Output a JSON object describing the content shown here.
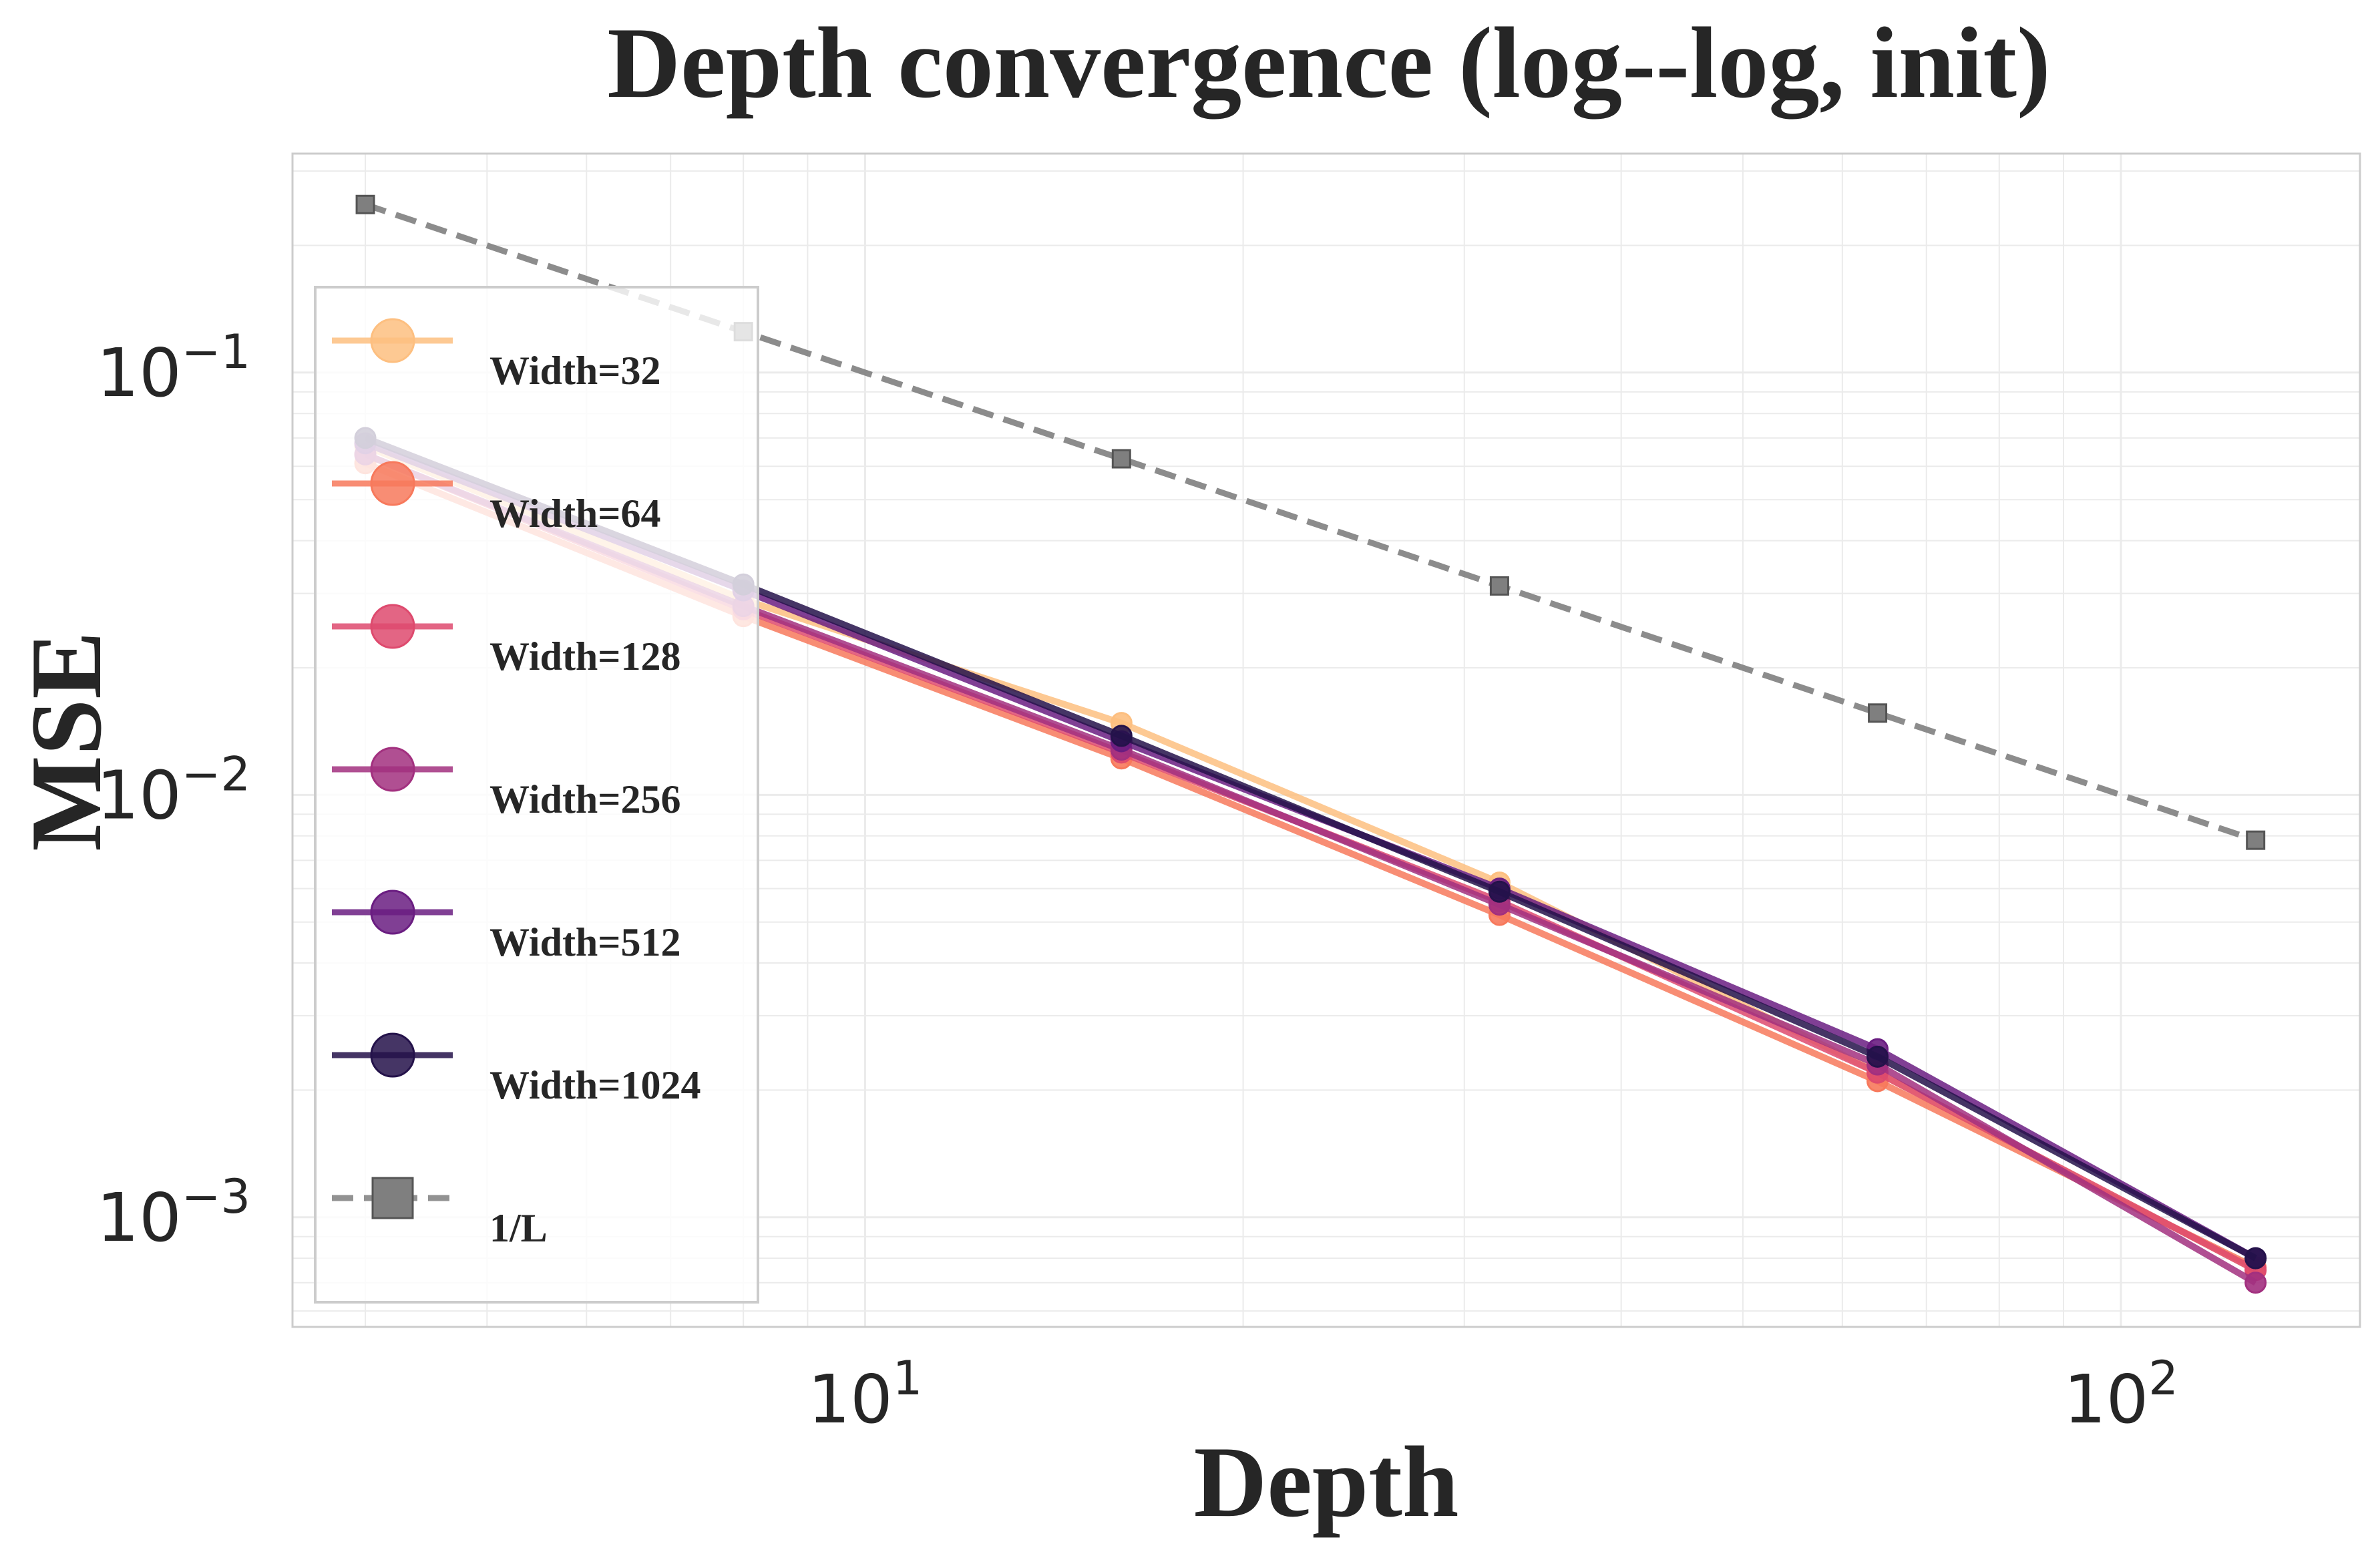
{
  "chart_data": {
    "type": "line",
    "title": "Depth convergence (log--log, init)",
    "xlabel": "Depth",
    "ylabel": "MSE",
    "xscale": "log",
    "yscale": "log",
    "xlim": [
      3.5,
      155
    ],
    "ylim": [
      0.00055,
      0.33
    ],
    "grid": true,
    "legend_position": "upper left",
    "x_ticks": [
      {
        "value": 10,
        "base": "10",
        "exp": "1"
      },
      {
        "value": 100,
        "base": "10",
        "exp": "2"
      }
    ],
    "y_ticks": [
      {
        "value": 0.1,
        "base": "10",
        "exp": "−1"
      },
      {
        "value": 0.01,
        "base": "10",
        "exp": "−2"
      },
      {
        "value": 0.001,
        "base": "10",
        "exp": "−3"
      }
    ],
    "x": [
      4,
      8,
      16,
      32,
      64,
      128
    ],
    "series": [
      {
        "name": "Width=32",
        "color": "#fdbf80",
        "marker": "circle",
        "dash": false,
        "values": [
          0.067,
          0.029,
          0.0148,
          0.0062,
          0.0022,
          0.00075
        ]
      },
      {
        "name": "Width=64",
        "color": "#f7795c",
        "marker": "circle",
        "dash": false,
        "values": [
          0.061,
          0.0265,
          0.0122,
          0.0052,
          0.0021,
          0.00076
        ]
      },
      {
        "name": "Width=128",
        "color": "#de4a6e",
        "marker": "circle",
        "dash": false,
        "values": [
          0.064,
          0.0275,
          0.0126,
          0.0056,
          0.0022,
          0.00075
        ]
      },
      {
        "name": "Width=256",
        "color": "#a2307f",
        "marker": "circle",
        "dash": false,
        "values": [
          0.064,
          0.028,
          0.0128,
          0.0055,
          0.0023,
          0.0007
        ]
      },
      {
        "name": "Width=512",
        "color": "#6a1d81",
        "marker": "circle",
        "dash": false,
        "values": [
          0.068,
          0.0305,
          0.0134,
          0.006,
          0.0025,
          0.0008
        ]
      },
      {
        "name": "Width=1024",
        "color": "#24124a",
        "marker": "circle",
        "dash": false,
        "values": [
          0.07,
          0.0315,
          0.0138,
          0.0059,
          0.0024,
          0.0008
        ]
      },
      {
        "name": "1/L",
        "color": "#7f7f7f",
        "marker": "square",
        "dash": true,
        "values": [
          0.25,
          0.125,
          0.0625,
          0.03125,
          0.015625,
          0.0078125
        ]
      }
    ]
  }
}
